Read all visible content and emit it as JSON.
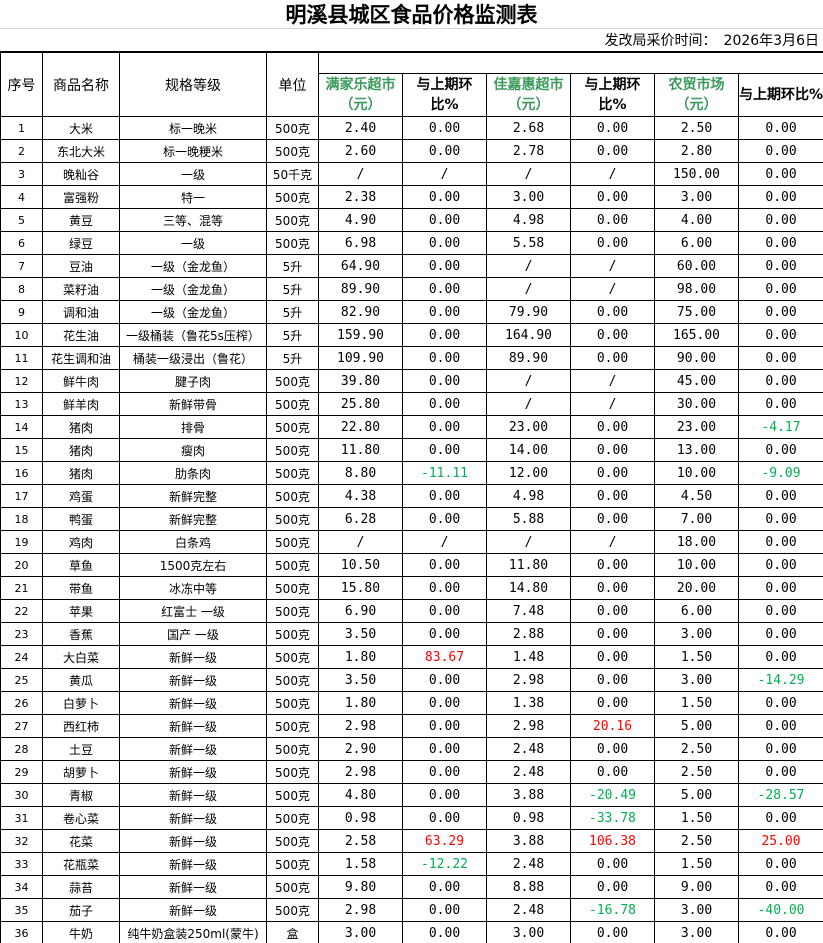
{
  "title": "明溪县城区食品价格监测表",
  "date_label": "发改局采价时间：　2026年3月6日",
  "headers": {
    "index": "序号",
    "name": "商品名称",
    "spec": "规格等级",
    "unit": "单位",
    "m1": "满家乐超市（元）",
    "c1": "与上期环比%",
    "m2": "佳嘉惠超市（元）",
    "c2": "与上期环比%",
    "m3": "农贸市场（元）",
    "c3": "与上期环比%"
  },
  "colors": {
    "market_header": "#3a9a5a",
    "increase": "#ff0000",
    "decrease": "#00b050"
  },
  "rows": [
    [
      "1",
      "大米",
      "标一晚米",
      "500克",
      "2.40",
      "0.00",
      "2.68",
      "0.00",
      "2.50",
      "0.00"
    ],
    [
      "2",
      "东北大米",
      "标一晚粳米",
      "500克",
      "2.60",
      "0.00",
      "2.78",
      "0.00",
      "2.80",
      "0.00"
    ],
    [
      "3",
      "晚籼谷",
      "一级",
      "50千克",
      "/",
      "/",
      "/",
      "/",
      "150.00",
      "0.00"
    ],
    [
      "4",
      "富强粉",
      "特一",
      "500克",
      "2.38",
      "0.00",
      "3.00",
      "0.00",
      "3.00",
      "0.00"
    ],
    [
      "5",
      "黄豆",
      "三等、混等",
      "500克",
      "4.90",
      "0.00",
      "4.98",
      "0.00",
      "4.00",
      "0.00"
    ],
    [
      "6",
      "绿豆",
      "一级",
      "500克",
      "6.98",
      "0.00",
      "5.58",
      "0.00",
      "6.00",
      "0.00"
    ],
    [
      "7",
      "豆油",
      "一级（金龙鱼）",
      "5升",
      "64.90",
      "0.00",
      "/",
      "/",
      "60.00",
      "0.00"
    ],
    [
      "8",
      "菜籽油",
      "一级（金龙鱼）",
      "5升",
      "89.90",
      "0.00",
      "/",
      "/",
      "98.00",
      "0.00"
    ],
    [
      "9",
      "调和油",
      "一级（金龙鱼）",
      "5升",
      "82.90",
      "0.00",
      "79.90",
      "0.00",
      "75.00",
      "0.00"
    ],
    [
      "10",
      "花生油",
      "一级桶装（鲁花5s压榨）",
      "5升",
      "159.90",
      "0.00",
      "164.90",
      "0.00",
      "165.00",
      "0.00"
    ],
    [
      "11",
      "花生调和油",
      "桶装一级浸出（鲁花）",
      "5升",
      "109.90",
      "0.00",
      "89.90",
      "0.00",
      "90.00",
      "0.00"
    ],
    [
      "12",
      "鲜牛肉",
      "腱子肉",
      "500克",
      "39.80",
      "0.00",
      "/",
      "/",
      "45.00",
      "0.00"
    ],
    [
      "13",
      "鲜羊肉",
      "新鲜带骨",
      "500克",
      "25.80",
      "0.00",
      "/",
      "/",
      "30.00",
      "0.00"
    ],
    [
      "14",
      "猪肉",
      "排骨",
      "500克",
      "22.80",
      "0.00",
      "23.00",
      "0.00",
      "23.00",
      "-4.17"
    ],
    [
      "15",
      "猪肉",
      "瘦肉",
      "500克",
      "11.80",
      "0.00",
      "14.00",
      "0.00",
      "13.00",
      "0.00"
    ],
    [
      "16",
      "猪肉",
      "肋条肉",
      "500克",
      "8.80",
      "-11.11",
      "12.00",
      "0.00",
      "10.00",
      "-9.09"
    ],
    [
      "17",
      "鸡蛋",
      "新鲜完整",
      "500克",
      "4.38",
      "0.00",
      "4.98",
      "0.00",
      "4.50",
      "0.00"
    ],
    [
      "18",
      "鸭蛋",
      "新鲜完整",
      "500克",
      "6.28",
      "0.00",
      "5.88",
      "0.00",
      "7.00",
      "0.00"
    ],
    [
      "19",
      "鸡肉",
      "白条鸡",
      "500克",
      "/",
      "/",
      "/",
      "/",
      "18.00",
      "0.00"
    ],
    [
      "20",
      "草鱼",
      "1500克左右",
      "500克",
      "10.50",
      "0.00",
      "11.80",
      "0.00",
      "10.00",
      "0.00"
    ],
    [
      "21",
      "带鱼",
      "冰冻中等",
      "500克",
      "15.80",
      "0.00",
      "14.80",
      "0.00",
      "20.00",
      "0.00"
    ],
    [
      "22",
      "苹果",
      "红富士 一级",
      "500克",
      "6.90",
      "0.00",
      "7.48",
      "0.00",
      "6.00",
      "0.00"
    ],
    [
      "23",
      "香蕉",
      "国产 一级",
      "500克",
      "3.50",
      "0.00",
      "2.88",
      "0.00",
      "3.00",
      "0.00"
    ],
    [
      "24",
      "大白菜",
      "新鲜一级",
      "500克",
      "1.80",
      "83.67",
      "1.48",
      "0.00",
      "1.50",
      "0.00"
    ],
    [
      "25",
      "黄瓜",
      "新鲜一级",
      "500克",
      "3.50",
      "0.00",
      "2.98",
      "0.00",
      "3.00",
      "-14.29"
    ],
    [
      "26",
      "白萝卜",
      "新鲜一级",
      "500克",
      "1.80",
      "0.00",
      "1.38",
      "0.00",
      "1.50",
      "0.00"
    ],
    [
      "27",
      "西红柿",
      "新鲜一级",
      "500克",
      "2.98",
      "0.00",
      "2.98",
      "20.16",
      "5.00",
      "0.00"
    ],
    [
      "28",
      "土豆",
      "新鲜一级",
      "500克",
      "2.90",
      "0.00",
      "2.48",
      "0.00",
      "2.50",
      "0.00"
    ],
    [
      "29",
      "胡萝卜",
      "新鲜一级",
      "500克",
      "2.98",
      "0.00",
      "2.48",
      "0.00",
      "2.50",
      "0.00"
    ],
    [
      "30",
      "青椒",
      "新鲜一级",
      "500克",
      "4.80",
      "0.00",
      "3.88",
      "-20.49",
      "5.00",
      "-28.57"
    ],
    [
      "31",
      "卷心菜",
      "新鲜一级",
      "500克",
      "0.98",
      "0.00",
      "0.98",
      "-33.78",
      "1.50",
      "0.00"
    ],
    [
      "32",
      "花菜",
      "新鲜一级",
      "500克",
      "2.58",
      "63.29",
      "3.88",
      "106.38",
      "2.50",
      "25.00"
    ],
    [
      "33",
      "花瓶菜",
      "新鲜一级",
      "500克",
      "1.58",
      "-12.22",
      "2.48",
      "0.00",
      "1.50",
      "0.00"
    ],
    [
      "34",
      "蒜苔",
      "新鲜一级",
      "500克",
      "9.80",
      "0.00",
      "8.88",
      "0.00",
      "9.00",
      "0.00"
    ],
    [
      "35",
      "茄子",
      "新鲜一级",
      "500克",
      "2.98",
      "0.00",
      "2.48",
      "-16.78",
      "3.00",
      "-40.00"
    ],
    [
      "36",
      "牛奶",
      "纯牛奶盒装250ml(蒙牛)",
      "盒",
      "3.00",
      "0.00",
      "3.00",
      "0.00",
      "3.00",
      "0.00"
    ]
  ]
}
